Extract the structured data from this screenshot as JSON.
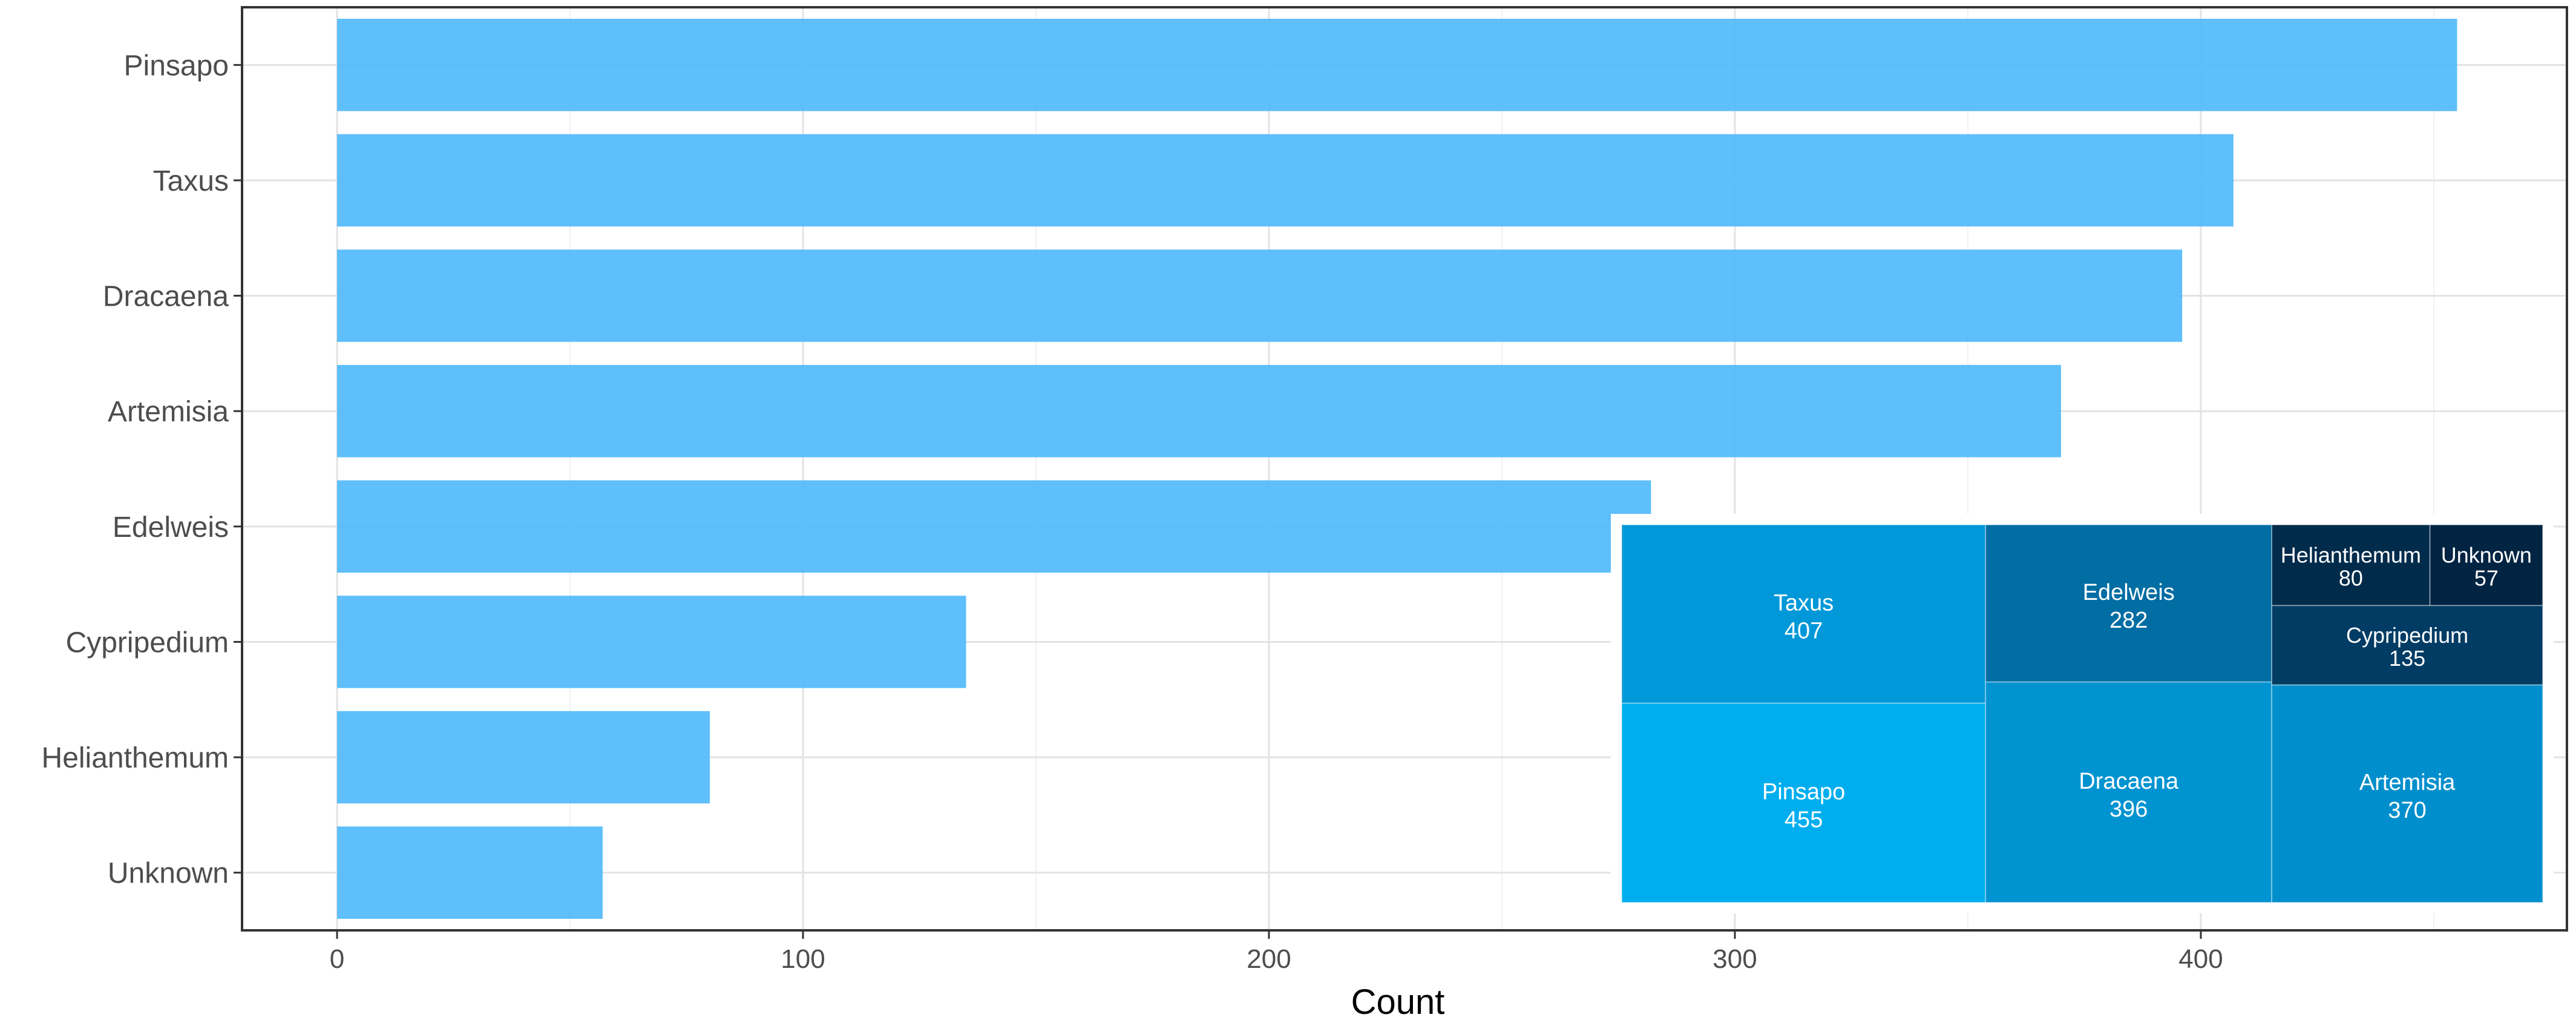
{
  "chart_data": [
    {
      "type": "bar",
      "orientation": "horizontal",
      "categories": [
        "Pinsapo",
        "Taxus",
        "Dracaena",
        "Artemisia",
        "Edelweis",
        "Cypripedium",
        "Helianthemum",
        "Unknown"
      ],
      "values": [
        455,
        407,
        396,
        370,
        282,
        135,
        80,
        57
      ],
      "xlabel": "Count",
      "ylabel": "",
      "xlim": [
        -24,
        477
      ],
      "xticks": [
        0,
        100,
        200,
        300,
        400
      ],
      "grid": true,
      "bar_color": "#4cb8fb"
    },
    {
      "type": "treemap",
      "items": [
        {
          "name": "Pinsapo",
          "value": 455,
          "color": "#00aeef"
        },
        {
          "name": "Taxus",
          "value": 407,
          "color": "#0098d8"
        },
        {
          "name": "Dracaena",
          "value": 396,
          "color": "#0093d1"
        },
        {
          "name": "Artemisia",
          "value": 370,
          "color": "#008fcc"
        },
        {
          "name": "Edelweis",
          "value": 282,
          "color": "#006da3"
        },
        {
          "name": "Cypripedium",
          "value": 135,
          "color": "#003c64"
        },
        {
          "name": "Helianthemum",
          "value": 80,
          "color": "#002b4b"
        },
        {
          "name": "Unknown",
          "value": 57,
          "color": "#002442"
        }
      ]
    }
  ]
}
